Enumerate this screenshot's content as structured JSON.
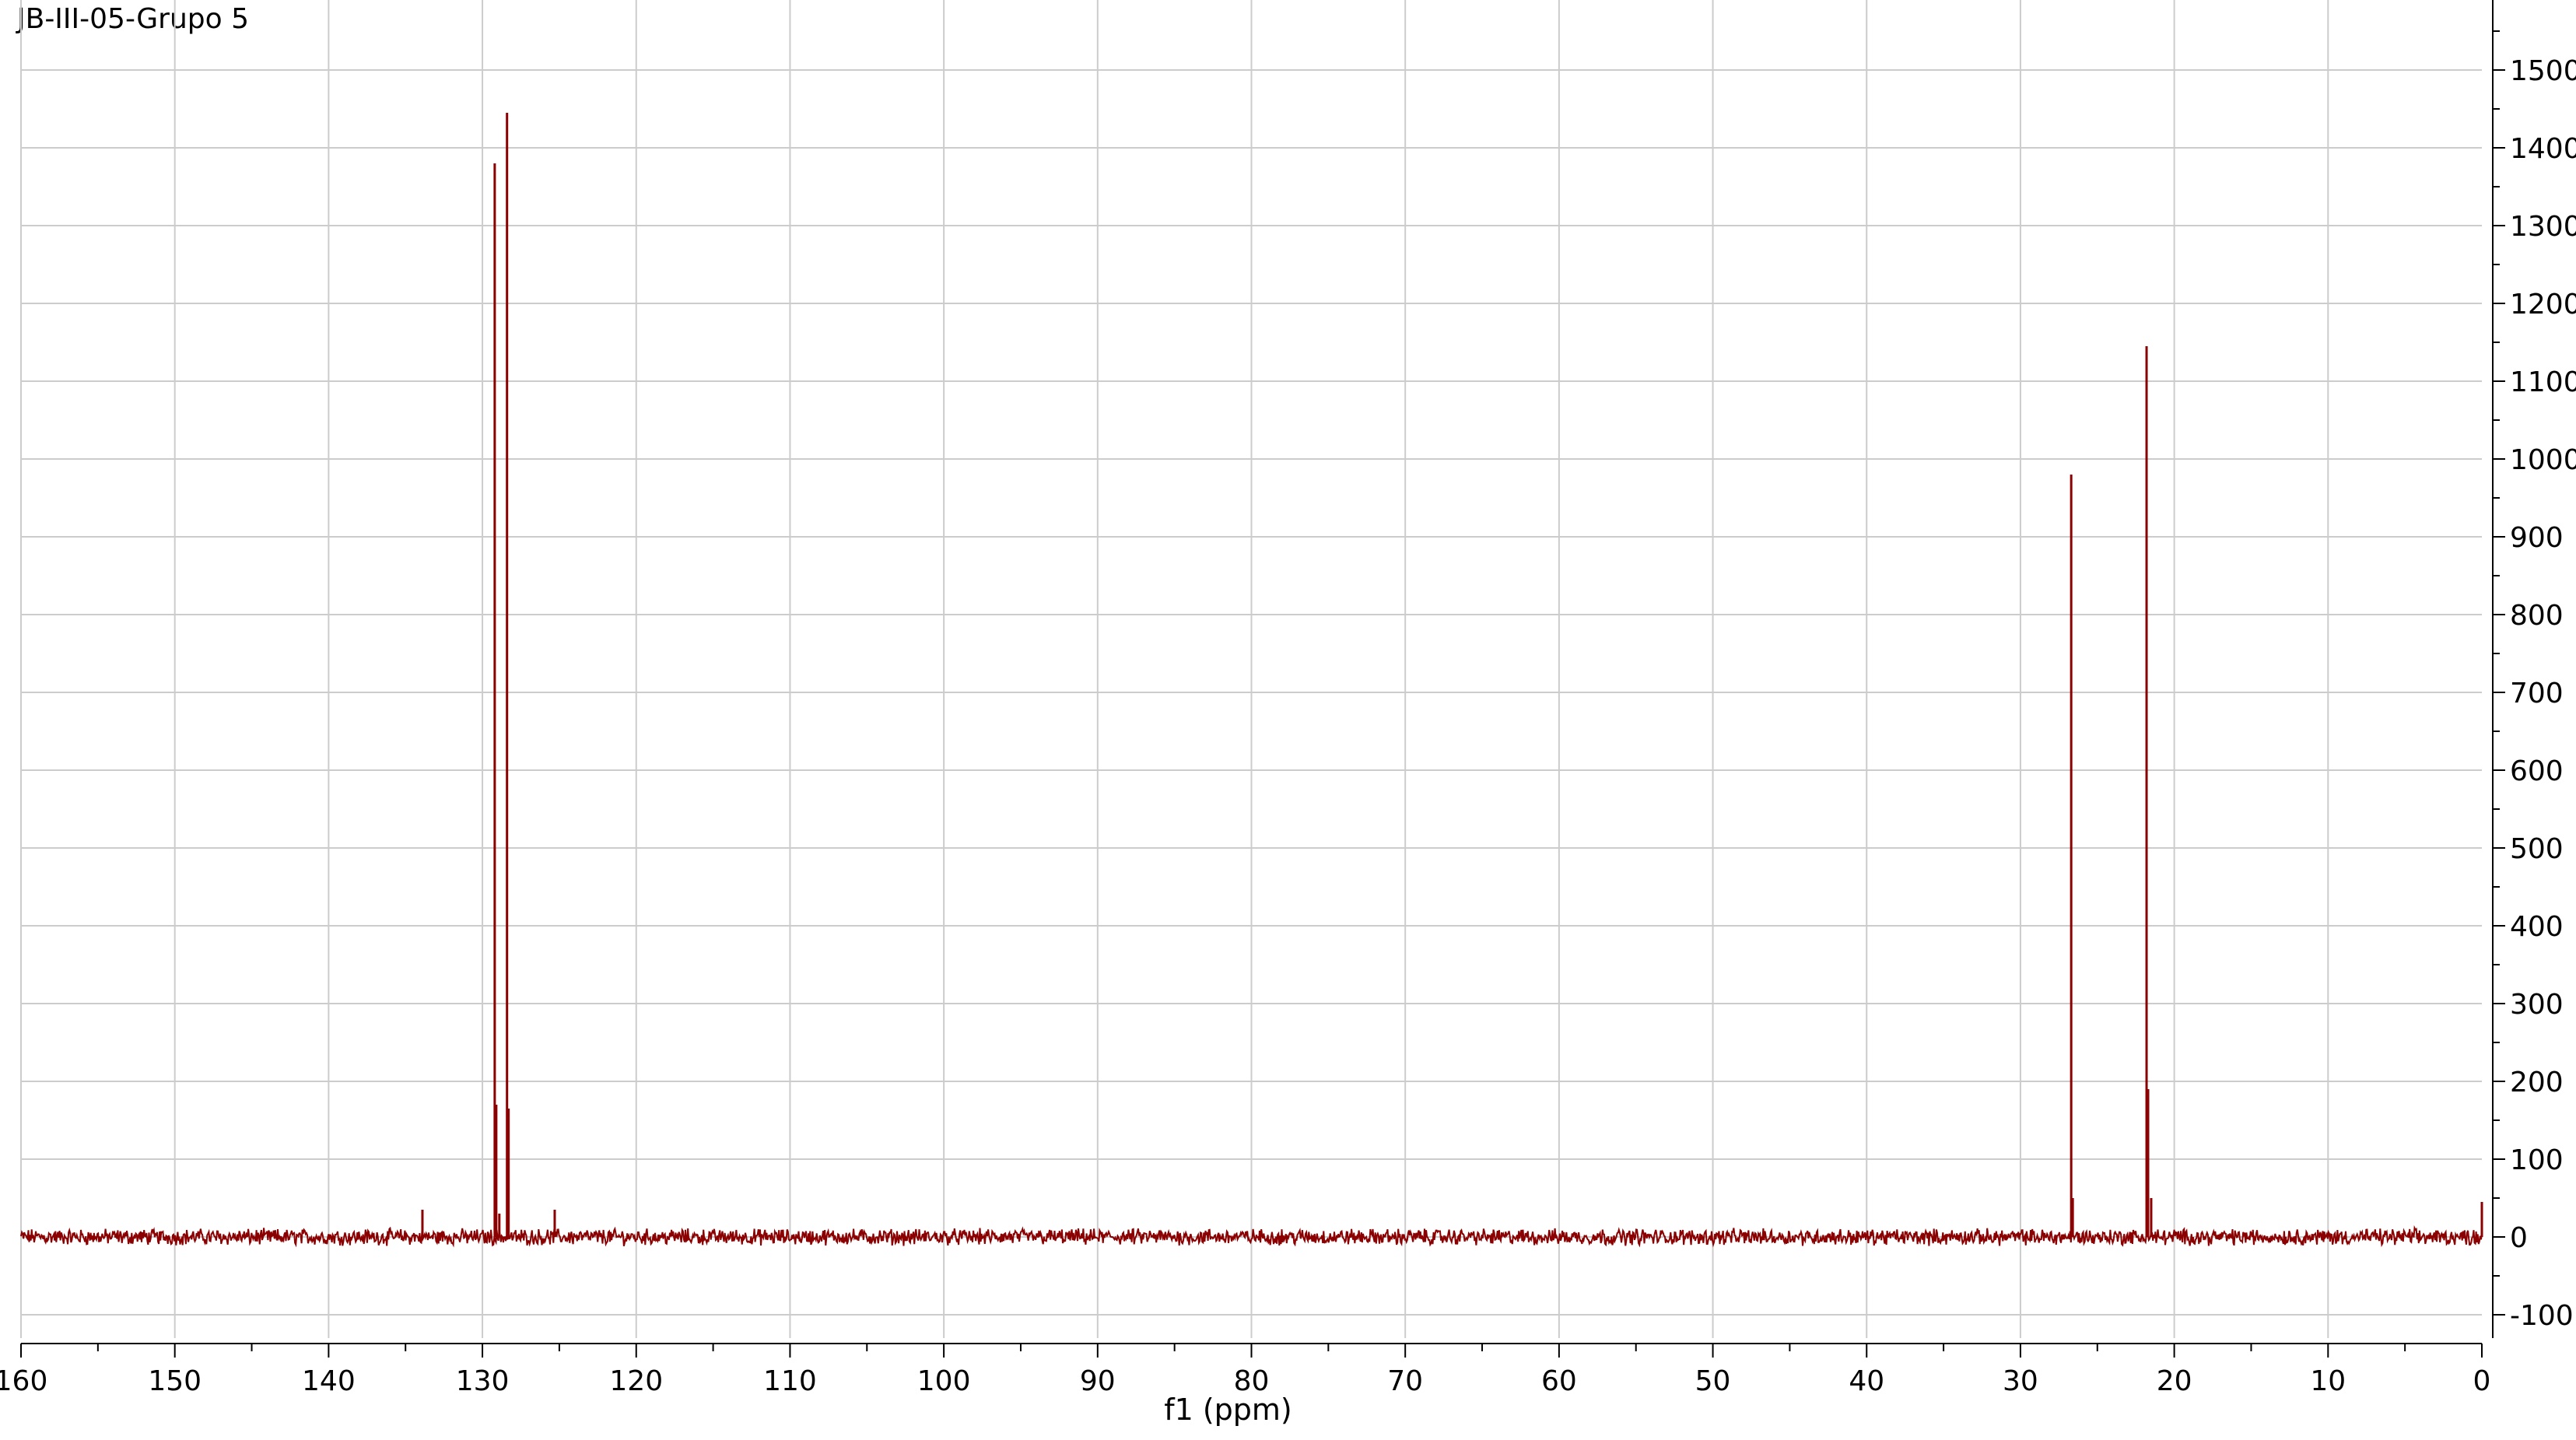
{
  "title": "JB-III-05-Grupo 5",
  "chart_data": {
    "type": "line",
    "title": "JB-III-05-Grupo 5",
    "xlabel": "f1 (ppm)",
    "ylabel": "",
    "xlim": [
      160,
      0
    ],
    "ylim": [
      -130,
      1590
    ],
    "x_reversed": true,
    "x_ticks": [
      160,
      150,
      140,
      130,
      120,
      110,
      100,
      90,
      80,
      70,
      60,
      50,
      40,
      30,
      20,
      10,
      0
    ],
    "x_tick_labels": [
      "160",
      "150",
      "140",
      "130",
      "120",
      "110",
      "100",
      "90",
      "80",
      "70",
      "60",
      "50",
      "40",
      "30",
      "20",
      "10",
      "0"
    ],
    "y_ticks": [
      -100,
      0,
      100,
      200,
      300,
      400,
      500,
      600,
      700,
      800,
      900,
      1000,
      1100,
      1200,
      1300,
      1400,
      1500
    ],
    "y_tick_labels": [
      "-100",
      "0",
      "100",
      "200",
      "300",
      "400",
      "500",
      "600",
      "700",
      "800",
      "900",
      "1000",
      "1100",
      "1200",
      "1300",
      "1400",
      "1500"
    ],
    "grid": true,
    "line_color": "#8b0000",
    "series": [
      {
        "peaks": [
          {
            "ppm": 133.9,
            "intensity": 35
          },
          {
            "ppm": 129.2,
            "intensity": 1380
          },
          {
            "ppm": 129.1,
            "intensity": 170
          },
          {
            "ppm": 128.9,
            "intensity": 30
          },
          {
            "ppm": 128.4,
            "intensity": 1445
          },
          {
            "ppm": 128.3,
            "intensity": 165
          },
          {
            "ppm": 125.3,
            "intensity": 35
          },
          {
            "ppm": 26.7,
            "intensity": 980
          },
          {
            "ppm": 26.6,
            "intensity": 50
          },
          {
            "ppm": 21.8,
            "intensity": 1145
          },
          {
            "ppm": 21.7,
            "intensity": 190
          },
          {
            "ppm": 21.5,
            "intensity": 50
          },
          {
            "ppm": 0.0,
            "intensity": 45
          }
        ],
        "noise_amplitude": 8
      }
    ]
  }
}
